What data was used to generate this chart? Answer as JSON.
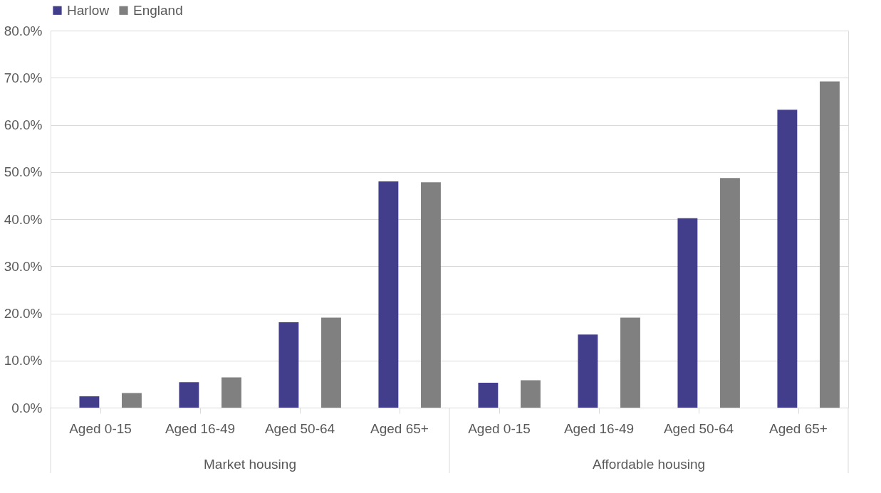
{
  "chart_data": {
    "type": "bar",
    "categories": [
      "Aged 0-15",
      "Aged 16-49",
      "Aged 50-64",
      "Aged 65+",
      "Aged 0-15",
      "Aged 16-49",
      "Aged 50-64",
      "Aged 65+"
    ],
    "series": [
      {
        "name": "Harlow",
        "color": "#433e8b",
        "values": [
          2.4,
          5.4,
          18.1,
          48.0,
          5.3,
          15.5,
          40.2,
          63.2
        ]
      },
      {
        "name": "England",
        "color": "#808080",
        "values": [
          3.1,
          6.4,
          19.1,
          47.8,
          5.8,
          19.1,
          48.7,
          69.2
        ]
      }
    ],
    "ylim": [
      0,
      80
    ],
    "yticks": [
      {
        "value": 0,
        "label": "0.0%"
      },
      {
        "value": 10,
        "label": "10.0%"
      },
      {
        "value": 20,
        "label": "20.0%"
      },
      {
        "value": 30,
        "label": "30.0%"
      },
      {
        "value": 40,
        "label": "40.0%"
      },
      {
        "value": 50,
        "label": "50.0%"
      },
      {
        "value": 60,
        "label": "60.0%"
      },
      {
        "value": 70,
        "label": "70.0%"
      },
      {
        "value": 80,
        "label": "80.0%"
      }
    ],
    "annotations": [
      "Market housing",
      "Affordable housing"
    ],
    "grid": "y",
    "legend": "top"
  }
}
